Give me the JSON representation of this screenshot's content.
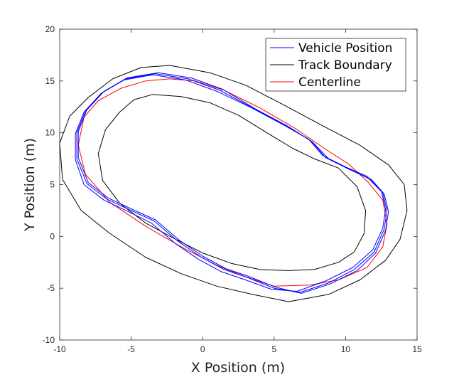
{
  "chart_data": {
    "type": "line",
    "xlabel": "X Position (m)",
    "ylabel": "Y Position (m)",
    "xlim": [
      -10,
      15
    ],
    "ylim": [
      -10,
      20
    ],
    "xticks": [
      -10,
      -5,
      0,
      5,
      10,
      15
    ],
    "yticks": [
      -10,
      -5,
      0,
      5,
      10,
      15,
      20
    ],
    "grid": false,
    "legend_position": "top-right",
    "series": [
      {
        "name": "Vehicle Position",
        "color": "#0000ff",
        "laps": [
          {
            "x": [
              -3.3,
              -1,
              1.2,
              3.5,
              5.8,
              7.6,
              8.6,
              10.2,
              11.6,
              12.6,
              12.9,
              12.7,
              12.0,
              10.6,
              8.8,
              6.8,
              5.0,
              3.2,
              1.5,
              -0.1,
              -1.7,
              -3.4,
              -5.0,
              -6.7,
              -8.1,
              -8.8,
              -8.8,
              -8.2,
              -7.0,
              -5.4,
              -3.3
            ],
            "y": [
              15.7,
              15.2,
              14.1,
              12.4,
              10.7,
              9.2,
              7.6,
              6.5,
              5.6,
              4.2,
              2.5,
              0.7,
              -1.5,
              -3.2,
              -4.5,
              -5.4,
              -5.0,
              -4.0,
              -3.2,
              -2.0,
              -0.5,
              1.5,
              2.5,
              3.6,
              5.1,
              7.5,
              10.0,
              12.1,
              13.9,
              15.2,
              15.7
            ]
          },
          {
            "x": [
              -3.5,
              -1.2,
              1.0,
              3.3,
              5.6,
              7.4,
              8.4,
              10.0,
              11.5,
              12.5,
              12.8,
              12.6,
              11.9,
              10.5,
              8.6,
              6.6,
              4.8,
              3.0,
              1.3,
              -0.3,
              -1.9,
              -3.6,
              -5.2,
              -6.9,
              -8.3,
              -8.9,
              -8.9,
              -8.3,
              -7.1,
              -5.5,
              -3.5
            ],
            "y": [
              15.6,
              15.1,
              14.0,
              12.5,
              10.8,
              9.4,
              7.8,
              6.7,
              5.8,
              4.4,
              2.6,
              0.8,
              -1.3,
              -3.0,
              -4.3,
              -5.3,
              -5.1,
              -4.2,
              -3.4,
              -2.2,
              -0.7,
              1.3,
              2.4,
              3.5,
              5.0,
              7.4,
              9.9,
              12.0,
              13.8,
              15.1,
              15.6
            ]
          },
          {
            "x": [
              -3.1,
              -0.8,
              1.4,
              3.7,
              6.0,
              7.7,
              8.8,
              10.4,
              11.8,
              12.7,
              13.0,
              12.8,
              12.1,
              10.8,
              8.9,
              6.9,
              5.1,
              3.3,
              1.6,
              0.0,
              -1.6,
              -3.3,
              -4.9,
              -6.6,
              -8.0,
              -8.7,
              -8.7,
              -8.1,
              -6.9,
              -5.3,
              -3.1
            ],
            "y": [
              15.8,
              15.3,
              14.2,
              12.3,
              10.6,
              9.1,
              7.5,
              6.4,
              5.5,
              4.1,
              2.4,
              0.6,
              -1.6,
              -3.3,
              -4.6,
              -5.5,
              -4.9,
              -3.9,
              -3.1,
              -1.9,
              -0.4,
              1.6,
              2.6,
              3.7,
              5.2,
              7.6,
              10.1,
              12.2,
              14.0,
              15.3,
              15.8
            ]
          }
        ]
      },
      {
        "name": "Track Boundary",
        "color": "#000000",
        "laps": [
          {
            "x": [
              -2.3,
              0.5,
              3.0,
              5.8,
              8.5,
              11.0,
              13.0,
              14.1,
              14.3,
              13.8,
              12.8,
              11.0,
              8.8,
              6.0,
              3.5,
              1.0,
              -1.5,
              -4.0,
              -6.5,
              -8.5,
              -9.8,
              -10.0,
              -9.3,
              -8.0,
              -6.3,
              -4.3,
              -2.3
            ],
            "y": [
              16.5,
              15.8,
              14.6,
              12.6,
              10.6,
              8.8,
              6.9,
              5.0,
              2.5,
              -0.3,
              -2.3,
              -4.2,
              -5.6,
              -6.3,
              -5.6,
              -4.8,
              -3.6,
              -2.0,
              0.3,
              2.5,
              5.5,
              9.0,
              11.6,
              13.4,
              15.2,
              16.3,
              16.5
            ]
          },
          {
            "x": [
              -3.5,
              -1.5,
              0.5,
              2.5,
              4.5,
              6.3,
              7.8,
              9.5,
              10.8,
              11.4,
              11.3,
              10.6,
              9.5,
              7.8,
              6.0,
              4.0,
              2.0,
              0.0,
              -2.0,
              -4.0,
              -5.8,
              -7.0,
              -7.3,
              -6.8,
              -5.8,
              -4.8,
              -3.5
            ],
            "y": [
              13.7,
              13.5,
              12.9,
              11.7,
              10.0,
              8.5,
              7.5,
              6.6,
              4.8,
              2.5,
              0.3,
              -1.5,
              -2.5,
              -3.2,
              -3.3,
              -3.2,
              -2.6,
              -1.6,
              -0.2,
              1.3,
              3.2,
              5.4,
              8.0,
              10.3,
              12.0,
              13.2,
              13.7
            ]
          }
        ]
      },
      {
        "name": "Centerline",
        "color": "#ff0000",
        "laps": [
          {
            "x": [
              -2.3,
              -0.5,
              1.5,
              4.0,
              6.5,
              8.5,
              10.2,
              11.6,
              12.6,
              12.9,
              12.6,
              11.5,
              9.5,
              7.5,
              5.0,
              3.0,
              1.0,
              -1.5,
              -4.0,
              -6.5,
              -8.2,
              -8.7,
              -8.3,
              -7.3,
              -5.7,
              -4.0,
              -2.3
            ],
            "y": [
              15.2,
              15.0,
              14.1,
              12.4,
              10.4,
              8.5,
              7.0,
              5.2,
              3.5,
              1.2,
              -1.0,
              -3.0,
              -4.2,
              -4.7,
              -4.8,
              -3.9,
              -2.8,
              -1.0,
              1.0,
              3.3,
              6.0,
              8.8,
              11.5,
              13.1,
              14.3,
              15.0,
              15.2
            ]
          }
        ]
      }
    ]
  }
}
